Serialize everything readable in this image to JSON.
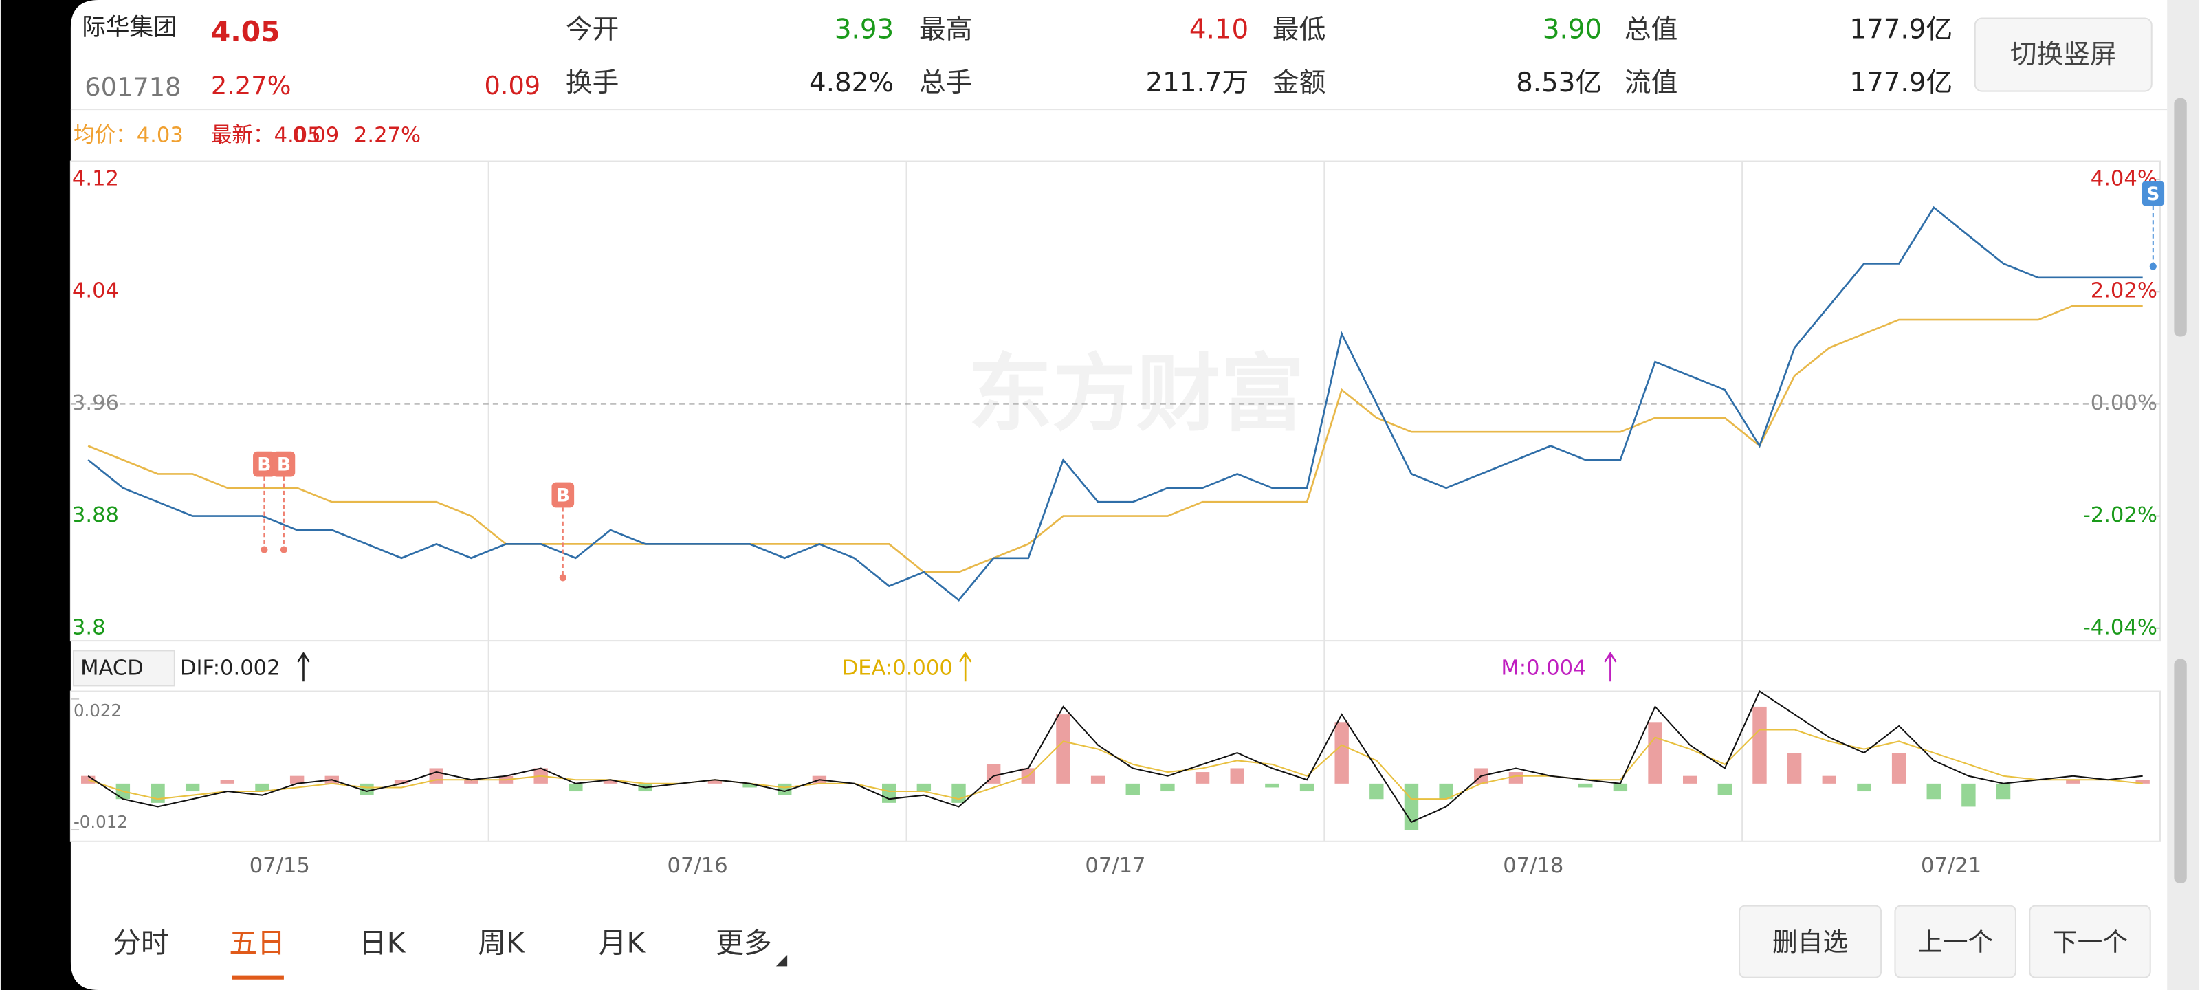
{
  "header": {
    "name": "际华集团",
    "price": "4.05",
    "code": "601718",
    "change_pct": "2.27%",
    "change": "0.09",
    "fields": [
      {
        "label": "今开",
        "value": "3.93"
      },
      {
        "label": "最高",
        "value": "4.10"
      },
      {
        "label": "最低",
        "value": "3.90"
      },
      {
        "label": "总值",
        "value": "177.9亿"
      },
      {
        "label": "换手",
        "value": "4.82%"
      },
      {
        "label": "总手",
        "value": "211.7万"
      },
      {
        "label": "金额",
        "value": "8.53亿"
      },
      {
        "label": "流值",
        "value": "177.9亿"
      }
    ],
    "button": "切换竖屏"
  },
  "chart_data": [
    {
      "type": "line",
      "legend": [
        "均价：4.03",
        "最新：4.05",
        "0.09",
        "2.27%"
      ],
      "watermark": "东方财富",
      "categories": [
        "07/15",
        "07/16",
        "07/17",
        "07/18",
        "07/21"
      ],
      "series": [
        {
          "color": "#2f6ea8",
          "values": [
            [
              3.92,
              3.9,
              3.89,
              3.88,
              3.88,
              3.88,
              3.87,
              3.87,
              3.86,
              3.85,
              3.86,
              3.85
            ],
            [
              3.86,
              3.86,
              3.85,
              3.87,
              3.86,
              3.86,
              3.86,
              3.86,
              3.85,
              3.86,
              3.85,
              3.83
            ],
            [
              3.84,
              3.82,
              3.85,
              3.85,
              3.92,
              3.89,
              3.89,
              3.9,
              3.9,
              3.91,
              3.9,
              3.9
            ],
            [
              4.01,
              3.96,
              3.91,
              3.9,
              3.91,
              3.92,
              3.93,
              3.92,
              3.92,
              3.99,
              3.98,
              3.97
            ],
            [
              3.93,
              4.0,
              4.03,
              4.06,
              4.06,
              4.1,
              4.08,
              4.06,
              4.05,
              4.05,
              4.05,
              4.05
            ]
          ]
        },
        {
          "name": "均价",
          "color": "#e8b84a",
          "values": [
            [
              3.93,
              3.92,
              3.91,
              3.91,
              3.9,
              3.9,
              3.9,
              3.89,
              3.89,
              3.89,
              3.89,
              3.88
            ],
            [
              3.86,
              3.86,
              3.86,
              3.86,
              3.86,
              3.86,
              3.86,
              3.86,
              3.86,
              3.86,
              3.86,
              3.86
            ],
            [
              3.84,
              3.84,
              3.85,
              3.86,
              3.88,
              3.88,
              3.88,
              3.88,
              3.89,
              3.89,
              3.89,
              3.89
            ],
            [
              3.97,
              3.95,
              3.94,
              3.94,
              3.94,
              3.94,
              3.94,
              3.94,
              3.94,
              3.95,
              3.95,
              3.95
            ],
            [
              3.93,
              3.98,
              4.0,
              4.01,
              4.02,
              4.02,
              4.02,
              4.02,
              4.02,
              4.03,
              4.03,
              4.03
            ]
          ]
        }
      ],
      "trade_marks": [
        "B",
        "B",
        "B",
        "S"
      ],
      "ylim": [
        3.8,
        4.12
      ],
      "yticks": [
        3.8,
        3.88,
        3.96,
        4.04,
        4.12
      ],
      "y2lim": [
        -4.04,
        4.04
      ],
      "y2ticks": [
        {
          "value": -4.04,
          "label": "-4.04%"
        },
        {
          "value": -2.02,
          "label": "-2.02%"
        },
        {
          "value": 0,
          "label": "0.00%"
        },
        {
          "value": 2.02,
          "label": "2.02%"
        },
        {
          "value": 4.04,
          "label": "4.04%"
        }
      ],
      "grid": true
    },
    {
      "type": "macd",
      "indicator": "MACD",
      "labels": [
        "DIF:0.002",
        "DEA:0.000",
        "M:0.004"
      ],
      "ylim": [
        -0.015,
        0.024
      ],
      "yticks": [
        -0.012,
        0.022
      ],
      "series": [
        {
          "name": "M",
          "values": [
            [
              0.002,
              -0.004,
              -0.005,
              -0.002,
              0.001,
              -0.002,
              0.002,
              0.002,
              -0.003,
              0.001,
              0.004,
              0.001
            ],
            [
              0.002,
              0.004,
              -0.002,
              0.001,
              -0.002,
              0.0,
              0.001,
              -0.001,
              -0.003,
              0.002,
              0.0,
              -0.005
            ],
            [
              -0.002,
              -0.005,
              0.005,
              0.004,
              0.018,
              0.002,
              -0.003,
              -0.002,
              0.003,
              0.004,
              -0.001,
              -0.002
            ],
            [
              0.016,
              -0.004,
              -0.012,
              -0.004,
              0.004,
              0.003,
              0.0,
              -0.001,
              -0.002,
              0.016,
              0.002,
              -0.003
            ],
            [
              0.02,
              0.008,
              0.002,
              -0.002,
              0.008,
              -0.004,
              -0.006,
              -0.004,
              0.0,
              0.001,
              0.0,
              0.001
            ]
          ]
        },
        {
          "name": "DIF",
          "color": "#111111",
          "values": [
            [
              0.002,
              -0.004,
              -0.006,
              -0.004,
              -0.002,
              -0.003,
              0.0,
              0.001,
              -0.002,
              0.0,
              0.003,
              0.001
            ],
            [
              0.002,
              0.004,
              0.0,
              0.001,
              -0.001,
              0.0,
              0.001,
              0.0,
              -0.002,
              0.001,
              0.0,
              -0.004
            ],
            [
              -0.003,
              -0.006,
              0.002,
              0.004,
              0.02,
              0.01,
              0.004,
              0.002,
              0.005,
              0.008,
              0.004,
              0.001
            ],
            [
              0.018,
              0.004,
              -0.01,
              -0.006,
              0.002,
              0.004,
              0.002,
              0.001,
              0.0,
              0.02,
              0.01,
              0.004
            ],
            [
              0.024,
              0.018,
              0.012,
              0.008,
              0.015,
              0.006,
              0.002,
              0.0,
              0.001,
              0.002,
              0.001,
              0.002
            ]
          ]
        },
        {
          "name": "DEA",
          "color": "#e8c040",
          "values": [
            [
              0.001,
              -0.002,
              -0.004,
              -0.003,
              -0.002,
              -0.002,
              -0.001,
              0.0,
              -0.001,
              -0.001,
              0.001,
              0.001
            ],
            [
              0.001,
              0.002,
              0.001,
              0.001,
              0.0,
              0.0,
              0.001,
              0.0,
              -0.001,
              0.0,
              0.0,
              -0.002
            ],
            [
              -0.002,
              -0.004,
              -0.001,
              0.002,
              0.011,
              0.009,
              0.005,
              0.003,
              0.004,
              0.006,
              0.005,
              0.002
            ],
            [
              0.01,
              0.006,
              -0.004,
              -0.004,
              0.0,
              0.002,
              0.002,
              0.001,
              0.001,
              0.012,
              0.009,
              0.005
            ],
            [
              0.014,
              0.014,
              0.011,
              0.009,
              0.011,
              0.008,
              0.005,
              0.002,
              0.001,
              0.001,
              0.001,
              0.0
            ]
          ]
        }
      ]
    }
  ],
  "tabs": [
    "分时",
    "五日",
    "日K",
    "周K",
    "月K",
    "更多"
  ],
  "buttons": [
    "删自选",
    "上一个",
    "下一个"
  ]
}
